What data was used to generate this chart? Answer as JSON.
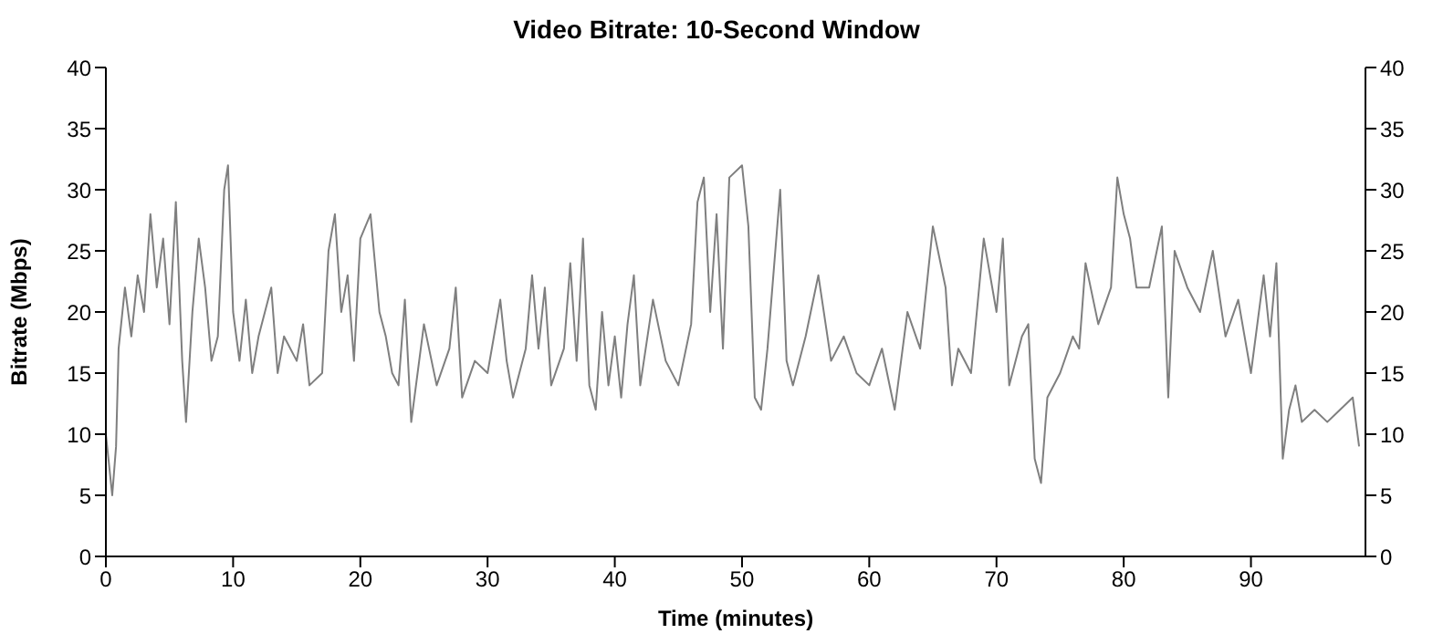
{
  "chart_data": {
    "type": "line",
    "title": "Video Bitrate: 10-Second Window",
    "xlabel": "Time (minutes)",
    "ylabel": "Bitrate (Mbps)",
    "xlim": [
      0,
      99
    ],
    "xticks": [
      0,
      10,
      20,
      30,
      40,
      50,
      60,
      70,
      80,
      90
    ],
    "ylim": [
      0,
      40
    ],
    "yticks": [
      0,
      5,
      10,
      15,
      20,
      25,
      30,
      35,
      40
    ],
    "y2lim": [
      0,
      40
    ],
    "y2ticks": [
      0,
      5,
      10,
      15,
      20,
      25,
      30,
      35,
      40
    ],
    "grid": false,
    "legend": false,
    "marker": "none",
    "line_style": "solid",
    "x": [
      0,
      0.5,
      0.8,
      1,
      1.5,
      2,
      2.5,
      3,
      3.5,
      4,
      4.5,
      5,
      5.5,
      6,
      6.3,
      6.8,
      7.3,
      7.8,
      8.3,
      8.8,
      9.3,
      9.6,
      10,
      10.5,
      11,
      11.5,
      12,
      12.5,
      13,
      13.5,
      14,
      15,
      15.5,
      16,
      17,
      17.5,
      18,
      18.5,
      19,
      19.5,
      20,
      20.8,
      21.5,
      22,
      22.5,
      23,
      23.5,
      24,
      25,
      26,
      27,
      27.5,
      28,
      29,
      30,
      31,
      31.5,
      32,
      33,
      33.5,
      34,
      34.5,
      35,
      36,
      36.5,
      37,
      37.5,
      38,
      38.5,
      39,
      39.5,
      40,
      40.5,
      41,
      41.5,
      42,
      43,
      44,
      45,
      46,
      46.5,
      47,
      47.5,
      48,
      48.5,
      49,
      50,
      50.5,
      51,
      51.5,
      52,
      53,
      53.5,
      54,
      55,
      56,
      57,
      58,
      59,
      60,
      61,
      62,
      63,
      64,
      65,
      66,
      66.5,
      67,
      68,
      69,
      70,
      70.5,
      71,
      72,
      72.5,
      73,
      73.5,
      74,
      75,
      76,
      76.5,
      77,
      78,
      79,
      79.5,
      80,
      80.5,
      81,
      82,
      83,
      83.5,
      84,
      85,
      86,
      87,
      88,
      89,
      90,
      91,
      91.5,
      92,
      92.5,
      93,
      93.5,
      94,
      95,
      96,
      97,
      98,
      98.5
    ],
    "series": [
      {
        "color": "#7f7f7f",
        "values": [
          10,
          5,
          9,
          17,
          22,
          18,
          23,
          20,
          28,
          22,
          26,
          19,
          29,
          16,
          11,
          20,
          26,
          22,
          16,
          18,
          30,
          32,
          20,
          16,
          21,
          15,
          18,
          20,
          22,
          15,
          18,
          16,
          19,
          14,
          15,
          25,
          28,
          20,
          23,
          16,
          26,
          28,
          20,
          18,
          15,
          14,
          21,
          11,
          19,
          14,
          17,
          22,
          13,
          16,
          15,
          21,
          16,
          13,
          17,
          23,
          17,
          22,
          14,
          17,
          24,
          16,
          26,
          14,
          12,
          20,
          14,
          18,
          13,
          19,
          23,
          14,
          21,
          16,
          14,
          19,
          29,
          31,
          20,
          28,
          17,
          31,
          32,
          27,
          13,
          12,
          17,
          30,
          16,
          14,
          18,
          23,
          16,
          18,
          15,
          14,
          17,
          12,
          20,
          17,
          27,
          22,
          14,
          17,
          15,
          26,
          20,
          26,
          14,
          18,
          19,
          8,
          6,
          13,
          15,
          18,
          17,
          24,
          19,
          22,
          31,
          28,
          26,
          22,
          22,
          27,
          13,
          25,
          22,
          20,
          25,
          18,
          21,
          15,
          23,
          18,
          24,
          8,
          12,
          14,
          11,
          12,
          11,
          12,
          13,
          9
        ]
      }
    ]
  }
}
